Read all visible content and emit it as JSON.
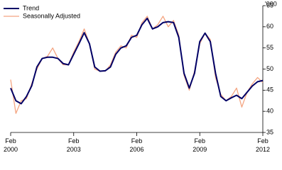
{
  "chart_data": {
    "type": "line",
    "y_unit": "'000",
    "x": [
      "2000-02",
      "2000-05",
      "2000-08",
      "2000-11",
      "2001-02",
      "2001-05",
      "2001-08",
      "2001-11",
      "2002-02",
      "2002-05",
      "2002-08",
      "2002-11",
      "2003-02",
      "2003-05",
      "2003-08",
      "2003-11",
      "2004-02",
      "2004-05",
      "2004-08",
      "2004-11",
      "2005-02",
      "2005-05",
      "2005-08",
      "2005-11",
      "2006-02",
      "2006-05",
      "2006-08",
      "2006-11",
      "2007-02",
      "2007-05",
      "2007-08",
      "2007-11",
      "2008-02",
      "2008-05",
      "2008-08",
      "2008-11",
      "2009-02",
      "2009-05",
      "2009-08",
      "2009-11",
      "2010-02",
      "2010-05",
      "2010-08",
      "2010-11",
      "2011-02",
      "2011-05",
      "2011-08",
      "2011-11",
      "2012-02"
    ],
    "series": [
      {
        "name": "Trend",
        "color": "#000066",
        "width": 2,
        "values": [
          45.5,
          42.5,
          41.8,
          43.5,
          46,
          50.5,
          52.5,
          52.8,
          52.8,
          52.5,
          51.3,
          51,
          53.5,
          56,
          58.6,
          56,
          50.5,
          49.5,
          49.6,
          50.5,
          53.5,
          55,
          55.5,
          57.5,
          58,
          60.5,
          62,
          59.5,
          60,
          61,
          61.2,
          61,
          57.5,
          49,
          45.5,
          49,
          56.5,
          58.5,
          56.5,
          49,
          43.5,
          42.5,
          43.2,
          43.8,
          43,
          44.5,
          46,
          47,
          47.3
        ]
      },
      {
        "name": "Seasonally Adjusted",
        "color": "#f4a582",
        "width": 1.3,
        "values": [
          47.5,
          39.5,
          42.5,
          43,
          46.5,
          50,
          52.5,
          53,
          55,
          52.5,
          51,
          51,
          54,
          56.5,
          59.5,
          56,
          50,
          49.5,
          49.5,
          51,
          54,
          55.5,
          55,
          58,
          57.5,
          61,
          62.5,
          59.5,
          60.5,
          62.5,
          60,
          61.5,
          58,
          48.5,
          45,
          49.5,
          56,
          58.5,
          57,
          48,
          44,
          42.5,
          43.5,
          45.5,
          41,
          44.5,
          46.5,
          48,
          46.8
        ]
      }
    ],
    "xlim": [
      "2000-02",
      "2012-02"
    ],
    "xticks": [
      {
        "value": "2000-02",
        "label": "Feb 2000"
      },
      {
        "value": "2003-02",
        "label": "Feb 2003"
      },
      {
        "value": "2006-02",
        "label": "Feb 2006"
      },
      {
        "value": "2009-02",
        "label": "Feb 2009"
      },
      {
        "value": "2012-02",
        "label": "Feb 2012"
      }
    ],
    "ylim": [
      35,
      65
    ],
    "yticks": [
      35,
      40,
      45,
      50,
      55,
      60,
      65
    ],
    "grid": false,
    "legend": "top-left"
  }
}
